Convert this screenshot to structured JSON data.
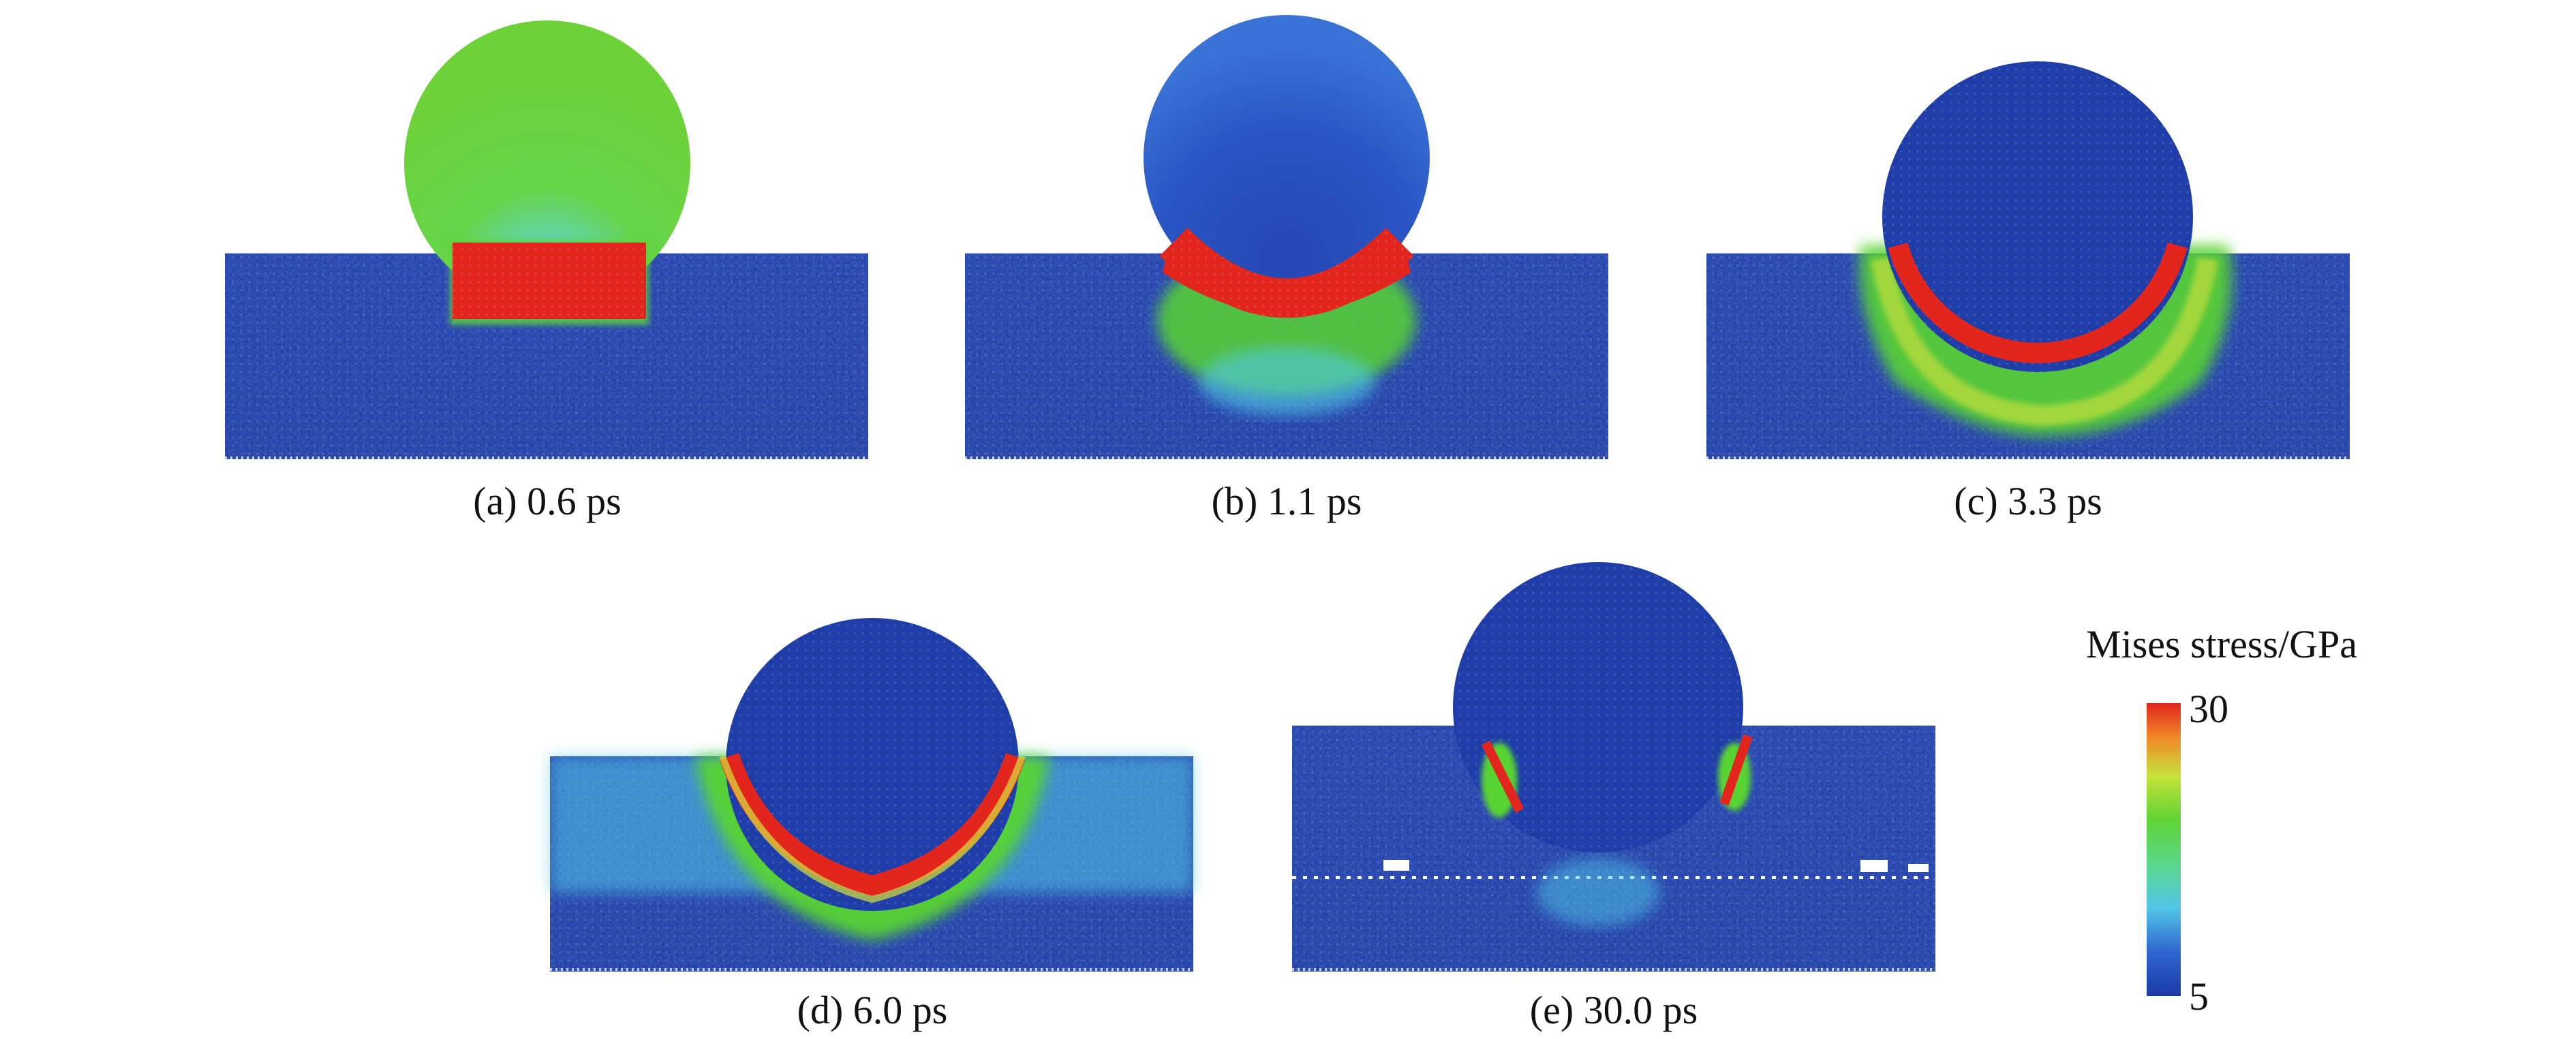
{
  "colors": {
    "low": "#1e3da8",
    "low_mid": "#3a6fd6",
    "mid": "#4fc8e6",
    "green": "#58d430",
    "yellow": "#d8e23a",
    "high": "#e2261e"
  },
  "panels": [
    {
      "id": "a",
      "caption": "(a) 0.6 ps"
    },
    {
      "id": "b",
      "caption": "(b) 1.1 ps"
    },
    {
      "id": "c",
      "caption": "(c) 3.3 ps"
    },
    {
      "id": "d",
      "caption": "(d) 6.0 ps"
    },
    {
      "id": "e",
      "caption": "(e) 30.0 ps"
    }
  ],
  "colorbar": {
    "title": "Mises stress/GPa",
    "max_label": "30",
    "min_label": "5",
    "max": 30,
    "min": 5
  }
}
